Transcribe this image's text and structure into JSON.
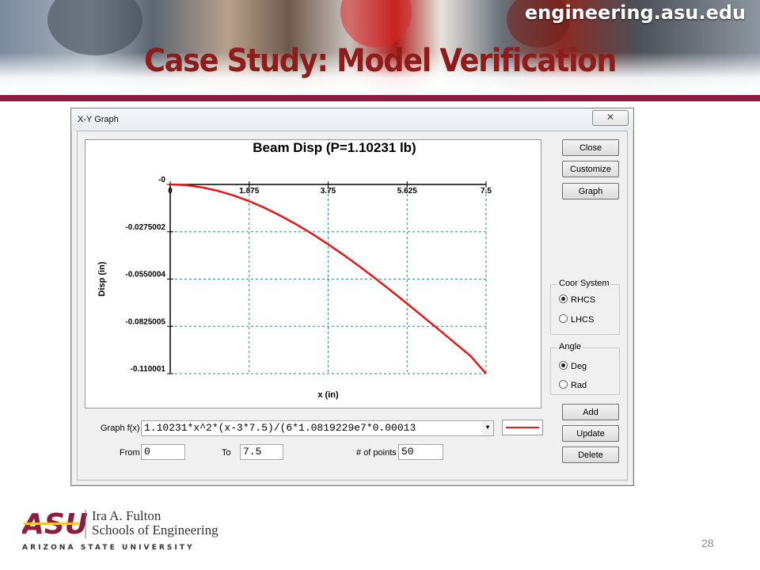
{
  "header": {
    "site_url": "engineering.asu.edu",
    "slide_title": "Case Study: Model Verification"
  },
  "window": {
    "title": "X-Y Graph",
    "close_glyph": "✕"
  },
  "chart_data": {
    "type": "line",
    "title": "Beam Disp (P=1.10231 lb)",
    "xlabel": "x (in)",
    "ylabel": "Disp (in)",
    "xlim": [
      0,
      7.5
    ],
    "ylim": [
      -0.110001,
      0
    ],
    "x_tick_labels": [
      "0",
      "1.875",
      "3.75",
      "5.625",
      "7.5"
    ],
    "y_tick_labels": [
      "-0",
      "-0.0275002",
      "-0.0550004",
      "-0.0825005",
      "-0.110001"
    ],
    "grid": true,
    "series_color": "#e21818",
    "series": [
      {
        "x": [
          0,
          0.375,
          0.75,
          1.125,
          1.5,
          1.875,
          2.25,
          2.625,
          3.0,
          3.375,
          3.75,
          4.125,
          4.5,
          4.875,
          5.25,
          5.625,
          6.0,
          6.375,
          6.75,
          7.125,
          7.5
        ],
        "values": [
          0,
          -0.00042,
          -0.00165,
          -0.00364,
          -0.00634,
          -0.0097,
          -0.01368,
          -0.01822,
          -0.02329,
          -0.02882,
          -0.03478,
          -0.04112,
          -0.04778,
          -0.05472,
          -0.0619,
          -0.06926,
          -0.07675,
          -0.08433,
          -0.09195,
          -0.09956,
          -0.11
        ]
      }
    ]
  },
  "buttons": {
    "close": "Close",
    "customize": "Customize",
    "graph": "Graph",
    "add": "Add",
    "update": "Update",
    "delete": "Delete"
  },
  "coor_system": {
    "legend": "Coor System",
    "options": [
      "RHCS",
      "LHCS"
    ],
    "selected": "RHCS"
  },
  "angle": {
    "legend": "Angle",
    "options": [
      "Deg",
      "Rad"
    ],
    "selected": "Deg"
  },
  "form": {
    "graph_fx_label": "Graph f(x)",
    "graph_fx_value": "1.10231*x^2*(x-3*7.5)/(6*1.0819229e7*0.00013",
    "from_label": "From",
    "from_value": "0",
    "to_label": "To",
    "to_value": "7.5",
    "points_label": "# of points",
    "points_value": "50"
  },
  "footer": {
    "logo_text": "ASU",
    "school_line1": "Ira A. Fulton",
    "school_line2": "Schools of Engineering",
    "university": "ARIZONA STATE UNIVERSITY",
    "page_number": "28"
  },
  "colors": {
    "title_maroon": "#8c1d1b",
    "rule_maroon": "#8c1d40",
    "asu_maroon": "#8c1d40",
    "asu_gold": "#ffc627"
  }
}
